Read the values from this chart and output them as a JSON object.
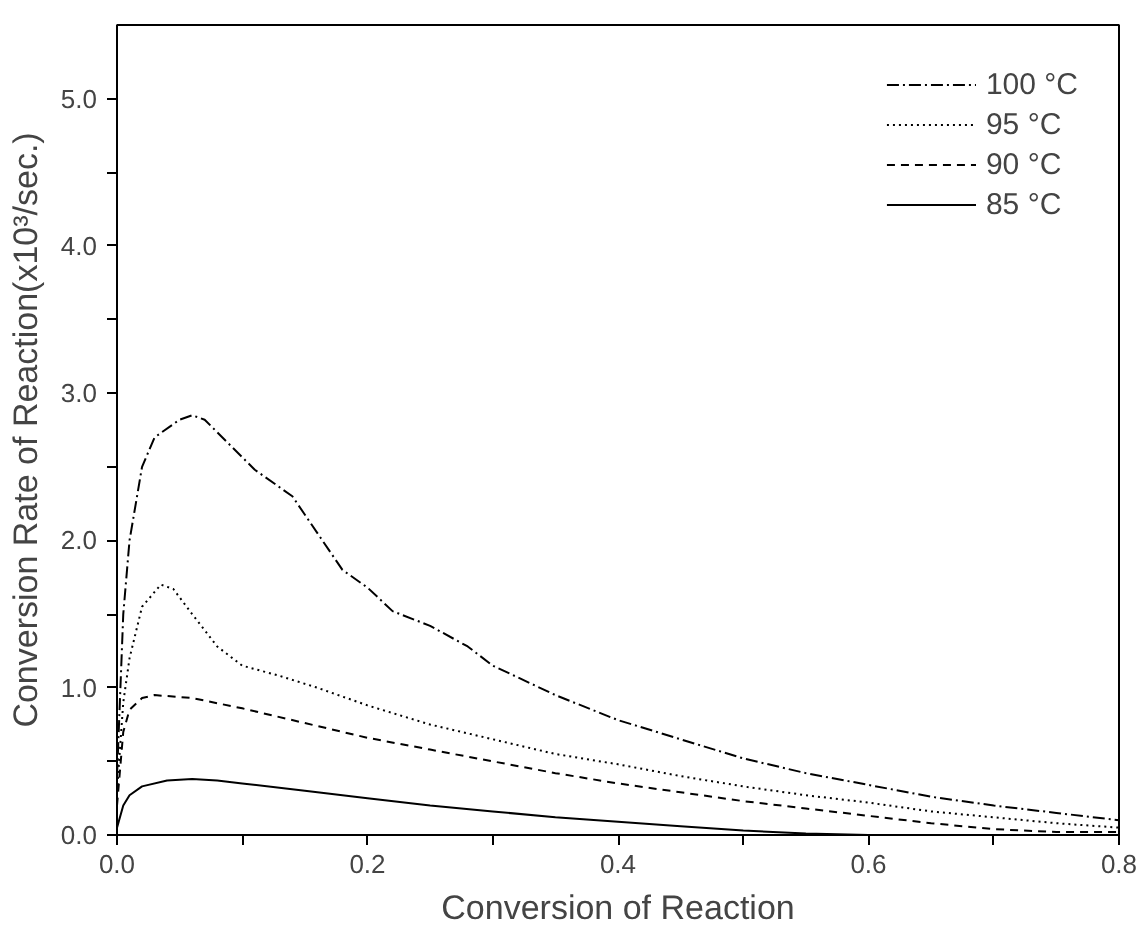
{
  "chart_data": {
    "type": "line",
    "xlabel": "Conversion of Reaction",
    "ylabel": "Conversion Rate of Reaction(x10³/sec.)",
    "xlim": [
      0,
      0.8
    ],
    "ylim": [
      0,
      5.5
    ],
    "xticks": [
      {
        "value": 0,
        "label": "0.0"
      },
      {
        "value": 0.1,
        "label": null
      },
      0.2,
      {
        "value": 0.3,
        "label": null
      },
      0.4,
      {
        "value": 0.5,
        "label": null
      },
      0.6,
      {
        "value": 0.7,
        "label": null
      },
      0.8
    ],
    "yticks": [
      {
        "value": 0,
        "label": "0.0"
      },
      {
        "value": 0.5,
        "label": null
      },
      {
        "value": 1,
        "label": "1.0"
      },
      {
        "value": 1.5,
        "label": null
      },
      {
        "value": 2,
        "label": "2.0"
      },
      {
        "value": 2.5,
        "label": null
      },
      {
        "value": 3,
        "label": "3.0"
      },
      {
        "value": 3.5,
        "label": null
      },
      {
        "value": 4,
        "label": "4.0"
      },
      {
        "value": 4.5,
        "label": null
      },
      {
        "value": 5,
        "label": "5.0"
      }
    ],
    "grid": false,
    "legend": "top right",
    "marker": "none",
    "series": [
      {
        "name": "100 °C",
        "color": "#000000",
        "line_style": "dashdot",
        "x": [
          0,
          0.005,
          0.01,
          0.02,
          0.03,
          0.05,
          0.06,
          0.07,
          0.09,
          0.11,
          0.14,
          0.16,
          0.18,
          0.2,
          0.22,
          0.25,
          0.28,
          0.3,
          0.35,
          0.4,
          0.45,
          0.5,
          0.55,
          0.6,
          0.65,
          0.7,
          0.75,
          0.8
        ],
        "values": [
          0.4,
          1.5,
          2.0,
          2.5,
          2.7,
          2.82,
          2.85,
          2.82,
          2.65,
          2.48,
          2.3,
          2.05,
          1.8,
          1.68,
          1.52,
          1.42,
          1.28,
          1.15,
          0.95,
          0.78,
          0.65,
          0.52,
          0.42,
          0.34,
          0.26,
          0.2,
          0.15,
          0.1
        ]
      },
      {
        "name": "95 °C",
        "color": "#000000",
        "line_style": "dotted",
        "x": [
          0,
          0.005,
          0.01,
          0.02,
          0.035,
          0.045,
          0.06,
          0.08,
          0.1,
          0.13,
          0.16,
          0.2,
          0.25,
          0.3,
          0.35,
          0.4,
          0.45,
          0.5,
          0.55,
          0.6,
          0.65,
          0.7,
          0.75,
          0.8
        ],
        "values": [
          0.3,
          0.9,
          1.2,
          1.55,
          1.7,
          1.67,
          1.5,
          1.28,
          1.15,
          1.08,
          1.0,
          0.88,
          0.75,
          0.65,
          0.55,
          0.48,
          0.4,
          0.33,
          0.27,
          0.22,
          0.16,
          0.12,
          0.08,
          0.05
        ]
      },
      {
        "name": "90 °C",
        "color": "#000000",
        "line_style": "dashed",
        "x": [
          0,
          0.005,
          0.01,
          0.02,
          0.03,
          0.06,
          0.1,
          0.15,
          0.2,
          0.25,
          0.3,
          0.35,
          0.4,
          0.45,
          0.5,
          0.55,
          0.6,
          0.65,
          0.7,
          0.75,
          0.8
        ],
        "values": [
          0.2,
          0.7,
          0.85,
          0.93,
          0.95,
          0.93,
          0.86,
          0.76,
          0.66,
          0.58,
          0.5,
          0.42,
          0.35,
          0.29,
          0.23,
          0.18,
          0.13,
          0.08,
          0.04,
          0.02,
          0.02
        ]
      },
      {
        "name": "85 °C",
        "color": "#000000",
        "line_style": "solid",
        "x": [
          0,
          0.005,
          0.01,
          0.02,
          0.04,
          0.06,
          0.08,
          0.1,
          0.15,
          0.2,
          0.25,
          0.3,
          0.35,
          0.4,
          0.45,
          0.5,
          0.55,
          0.6,
          0.65,
          0.7
        ],
        "values": [
          0.05,
          0.2,
          0.27,
          0.33,
          0.37,
          0.38,
          0.37,
          0.35,
          0.3,
          0.25,
          0.2,
          0.16,
          0.12,
          0.09,
          0.06,
          0.03,
          0.01,
          0.0,
          0.0,
          0.0
        ]
      }
    ]
  }
}
